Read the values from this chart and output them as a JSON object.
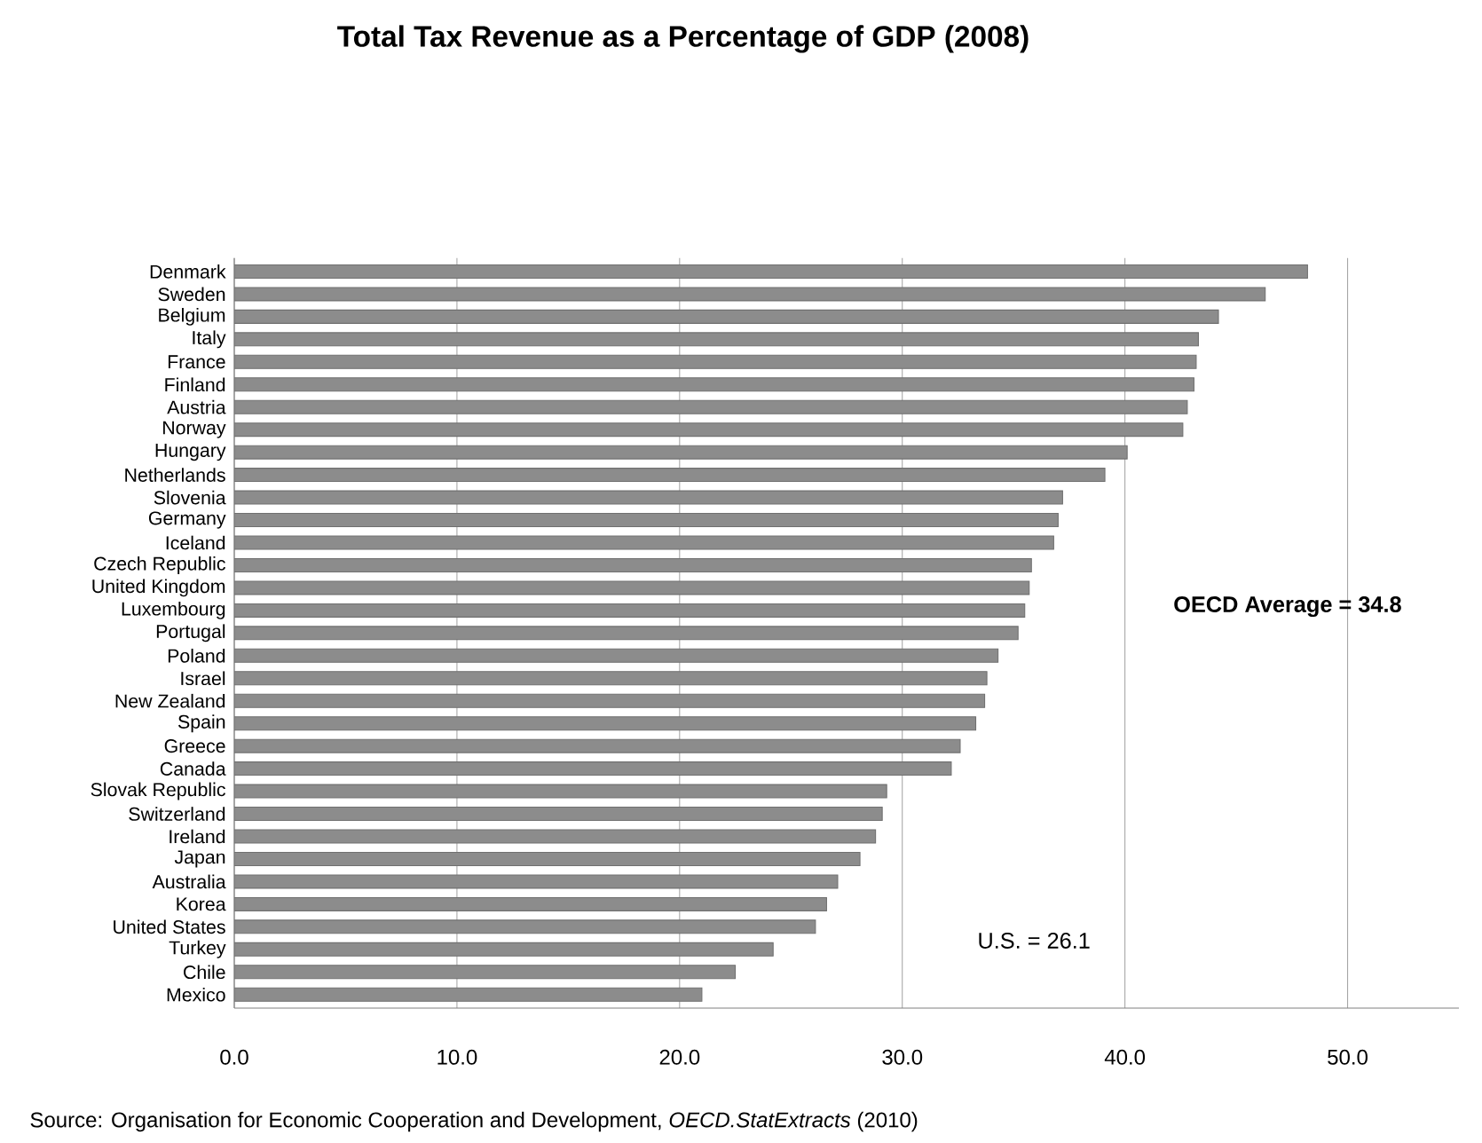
{
  "chart_data": {
    "type": "bar",
    "orientation": "horizontal",
    "title": "Total Tax Revenue as a Percentage of GDP (2008)",
    "categories": [
      "Denmark",
      "Sweden",
      "Belgium",
      "Italy",
      "France",
      "Finland",
      "Austria",
      "Norway",
      "Hungary",
      "Netherlands",
      "Slovenia",
      "Germany",
      "Iceland",
      "Czech Republic",
      "United Kingdom",
      "Luxembourg",
      "Portugal",
      "Poland",
      "Israel",
      "New Zealand",
      "Spain",
      "Greece",
      "Canada",
      "Slovak Republic",
      "Switzerland",
      "Ireland",
      "Japan",
      "Australia",
      "Korea",
      "United States",
      "Turkey",
      "Chile",
      "Mexico"
    ],
    "values": [
      48.2,
      46.3,
      44.2,
      43.3,
      43.2,
      43.1,
      42.8,
      42.6,
      40.1,
      39.1,
      37.2,
      37.0,
      36.8,
      35.8,
      35.7,
      35.5,
      35.2,
      34.3,
      33.8,
      33.7,
      33.3,
      32.6,
      32.2,
      29.3,
      29.1,
      28.8,
      28.1,
      27.1,
      26.6,
      26.1,
      24.2,
      22.5,
      21.0
    ],
    "color": "#8c8c8c",
    "xlim": [
      0,
      55
    ],
    "xticks": [
      {
        "value": 0,
        "label": "0.0"
      },
      {
        "value": 10,
        "label": "10.0"
      },
      {
        "value": 20,
        "label": "20.0"
      },
      {
        "value": 30,
        "label": "30.0"
      },
      {
        "value": 40,
        "label": "40.0"
      },
      {
        "value": 50,
        "label": "50.0"
      }
    ],
    "grid": "x",
    "annotations": [
      "OECD Average = 34.8",
      "U.S. = 26.1",
      "Source: Organisation for Economic Cooperation and Development, *OECD.StatExtracts* (2010)"
    ]
  }
}
